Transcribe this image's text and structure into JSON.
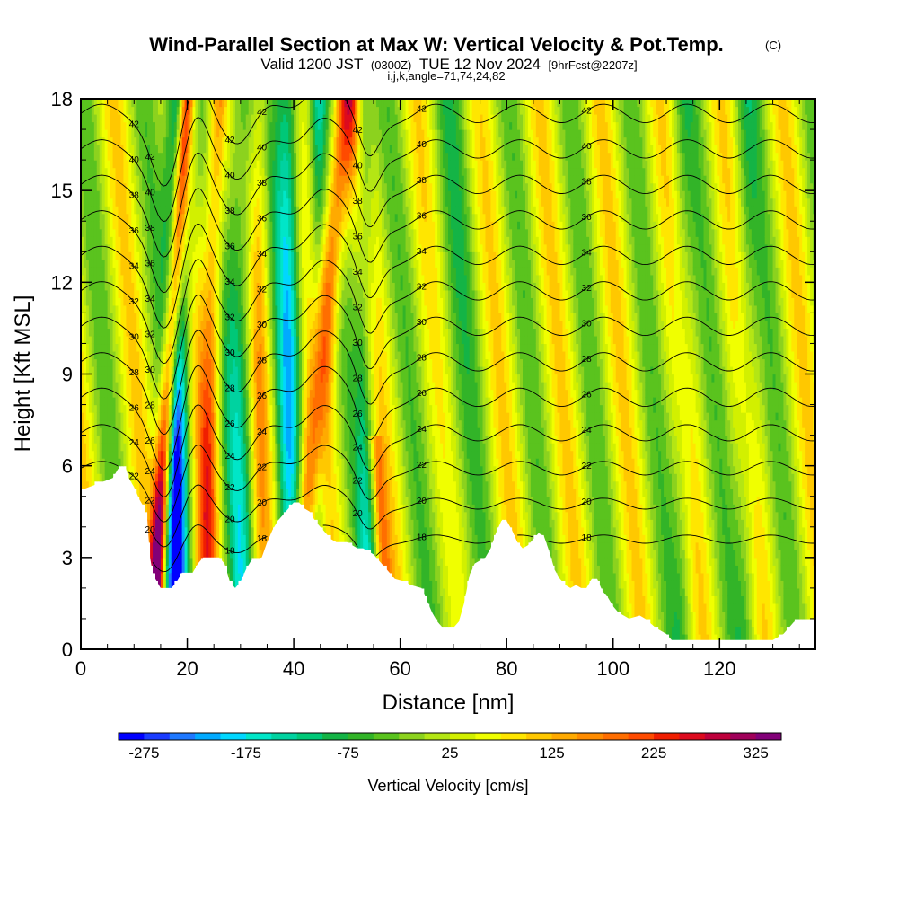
{
  "chart_data": {
    "type": "heatmap",
    "title": "Wind-Parallel Section at Max W: Vertical Velocity & Pot.Temp.",
    "title_mark": "(C)",
    "subtitle_valid": "Valid 1200 JST",
    "subtitle_utc": "(0300Z)",
    "subtitle_date": "TUE 12 Nov 2024",
    "subtitle_fcst": "[9hrFcst@2207z]",
    "subtitle_indices": "i,j,k,angle=71,74,24,82",
    "xlabel": "Distance [nm]",
    "ylabel": "Height [Kft MSL]",
    "xlim": [
      0,
      138
    ],
    "ylim": [
      0,
      18
    ],
    "x_ticks": [
      "0",
      "20",
      "40",
      "60",
      "80",
      "100",
      "120"
    ],
    "y_ticks": [
      "0",
      "3",
      "6",
      "9",
      "12",
      "15",
      "18"
    ],
    "colorbar": {
      "title": "Vertical Velocity [cm/s]",
      "tick_labels": [
        "-275",
        "-175",
        "-75",
        "25",
        "125",
        "225",
        "325"
      ],
      "levels": [
        -300,
        -275,
        -250,
        -225,
        -200,
        -175,
        -150,
        -125,
        -100,
        -75,
        -50,
        -25,
        0,
        25,
        50,
        75,
        100,
        125,
        150,
        175,
        200,
        225,
        250,
        275,
        300,
        325,
        350
      ],
      "colors": [
        "#0000ff",
        "#1a3cff",
        "#1e78ff",
        "#00aaff",
        "#00d7ff",
        "#00e6c8",
        "#00d2a0",
        "#00c878",
        "#14b446",
        "#32b428",
        "#5ac31e",
        "#8cd21e",
        "#b4e614",
        "#d2f000",
        "#f0ff00",
        "#ffe600",
        "#ffc800",
        "#ffaa00",
        "#ff8c00",
        "#ff6e00",
        "#ff4b00",
        "#f01e00",
        "#dc0a1e",
        "#be003c",
        "#a0005a",
        "#820078"
      ]
    },
    "terrain": [
      [
        0,
        5.2
      ],
      [
        3,
        5.4
      ],
      [
        6,
        5.6
      ],
      [
        7,
        5.9
      ],
      [
        8.5,
        5.9
      ],
      [
        9,
        5.6
      ],
      [
        10,
        5.3
      ],
      [
        11,
        4.9
      ],
      [
        12,
        4.6
      ],
      [
        12.5,
        4.2
      ],
      [
        13,
        3.0
      ],
      [
        13.5,
        2.5
      ],
      [
        14,
        2.3
      ],
      [
        15,
        2.0
      ],
      [
        17,
        2.0
      ],
      [
        18,
        2.2
      ],
      [
        19,
        2.5
      ],
      [
        21,
        2.5
      ],
      [
        22,
        2.8
      ],
      [
        23,
        3.0
      ],
      [
        26,
        3.0
      ],
      [
        27,
        2.8
      ],
      [
        28,
        2.2
      ],
      [
        29,
        2.0
      ],
      [
        30,
        2.2
      ],
      [
        31,
        2.6
      ],
      [
        32,
        2.9
      ],
      [
        34,
        3.0
      ],
      [
        35,
        3.5
      ],
      [
        36,
        3.9
      ],
      [
        37,
        4.2
      ],
      [
        38,
        4.4
      ],
      [
        39,
        4.6
      ],
      [
        40,
        4.8
      ],
      [
        41,
        4.8
      ],
      [
        42,
        4.6
      ],
      [
        43,
        4.5
      ],
      [
        44,
        4.2
      ],
      [
        45,
        4.0
      ],
      [
        46,
        3.8
      ],
      [
        47,
        3.6
      ],
      [
        48,
        3.5
      ],
      [
        49,
        3.5
      ],
      [
        50,
        3.5
      ],
      [
        51,
        3.4
      ],
      [
        52,
        3.3
      ],
      [
        53,
        3.3
      ],
      [
        54,
        3.2
      ],
      [
        55,
        3.1
      ],
      [
        56,
        2.9
      ],
      [
        57,
        2.7
      ],
      [
        58,
        2.5
      ],
      [
        59,
        2.3
      ],
      [
        61,
        2.2
      ],
      [
        62,
        2.1
      ],
      [
        64,
        2.0
      ],
      [
        65,
        1.6
      ],
      [
        66,
        1.2
      ],
      [
        67,
        0.9
      ],
      [
        68,
        0.7
      ],
      [
        70,
        0.7
      ],
      [
        71,
        0.9
      ],
      [
        72,
        1.5
      ],
      [
        73,
        2.4
      ],
      [
        74,
        2.8
      ],
      [
        76,
        3.0
      ],
      [
        77,
        3.3
      ],
      [
        78,
        3.8
      ],
      [
        79,
        4.2
      ],
      [
        80,
        4.2
      ],
      [
        81,
        3.9
      ],
      [
        82,
        3.5
      ],
      [
        83,
        3.3
      ],
      [
        84,
        3.4
      ],
      [
        85,
        3.6
      ],
      [
        86,
        3.8
      ],
      [
        87,
        3.7
      ],
      [
        88,
        3.2
      ],
      [
        89,
        2.6
      ],
      [
        90,
        2.3
      ],
      [
        91,
        2.1
      ],
      [
        92,
        2.0
      ],
      [
        93,
        2.1
      ],
      [
        94,
        2.0
      ],
      [
        95,
        2.0
      ],
      [
        96,
        2.3
      ],
      [
        97,
        2.3
      ],
      [
        98,
        1.9
      ],
      [
        99,
        1.7
      ],
      [
        100,
        1.4
      ],
      [
        101,
        1.2
      ],
      [
        103,
        1.0
      ],
      [
        105,
        1.1
      ],
      [
        106,
        1.0
      ],
      [
        108,
        0.7
      ],
      [
        110,
        0.5
      ],
      [
        111,
        0.3
      ],
      [
        120,
        0.3
      ],
      [
        126,
        0.3
      ],
      [
        130,
        0.3
      ],
      [
        132,
        0.5
      ],
      [
        133,
        0.7
      ],
      [
        134,
        0.9
      ],
      [
        138,
        0.9
      ]
    ],
    "contour_labels": [
      "42",
      "40",
      "38",
      "36",
      "34",
      "32",
      "30",
      "28",
      "26",
      "24",
      "22",
      "20",
      "18"
    ]
  }
}
